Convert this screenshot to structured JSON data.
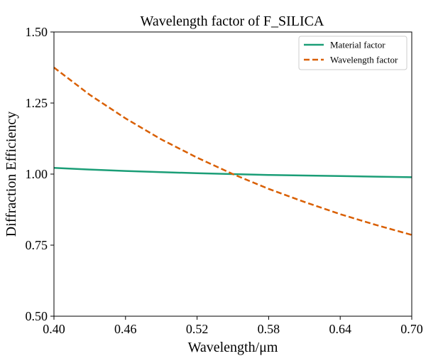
{
  "chart_data": {
    "type": "line",
    "title": "Wavelength factor of F_SILICA",
    "xlabel": "Wavelength/μm",
    "ylabel": "Diffraction Efficiency",
    "xlim": [
      0.4,
      0.7
    ],
    "ylim": [
      0.5,
      1.5
    ],
    "x_ticks": [
      "0.40",
      "0.46",
      "0.52",
      "0.58",
      "0.64",
      "0.70"
    ],
    "y_ticks": [
      "0.50",
      "0.75",
      "1.00",
      "1.25",
      "1.50"
    ],
    "grid": false,
    "legend_position": "top-right",
    "x": [
      0.4,
      0.43,
      0.46,
      0.49,
      0.52,
      0.55,
      0.58,
      0.61,
      0.64,
      0.67,
      0.7
    ],
    "series": [
      {
        "name": "Material factor",
        "color": "#1b9e77",
        "style": "solid",
        "values": [
          1.022,
          1.016,
          1.011,
          1.007,
          1.003,
          1.0,
          0.997,
          0.995,
          0.993,
          0.991,
          0.989
        ]
      },
      {
        "name": "Wavelength factor",
        "color": "#d95f02",
        "style": "dashed",
        "values": [
          1.375,
          1.279,
          1.196,
          1.122,
          1.058,
          1.0,
          0.948,
          0.902,
          0.859,
          0.821,
          0.786
        ]
      }
    ]
  }
}
